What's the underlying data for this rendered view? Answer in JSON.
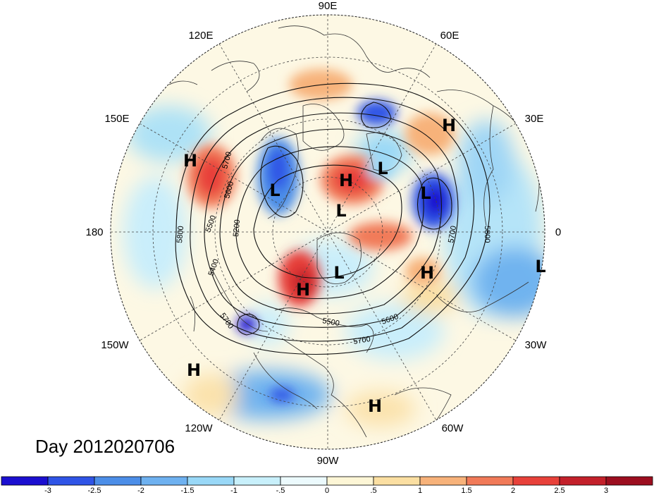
{
  "title": "Day 2012020706",
  "longitude_labels": [
    "90E",
    "60E",
    "30E",
    "0",
    "30W",
    "60W",
    "90W",
    "120W",
    "150W",
    "180",
    "150E",
    "120E"
  ],
  "pressure_centers": [
    {
      "type": "H",
      "label": "H"
    },
    {
      "type": "H",
      "label": "H"
    },
    {
      "type": "L",
      "label": "L"
    },
    {
      "type": "L",
      "label": "L"
    },
    {
      "type": "H",
      "label": "H"
    },
    {
      "type": "L",
      "label": "L"
    },
    {
      "type": "L",
      "label": "L"
    },
    {
      "type": "L",
      "label": "L"
    },
    {
      "type": "H",
      "label": "H"
    },
    {
      "type": "L",
      "label": "L"
    },
    {
      "type": "H",
      "label": "H"
    },
    {
      "type": "H",
      "label": "H"
    },
    {
      "type": "H",
      "label": "H"
    }
  ],
  "contour_labels": [
    "5700",
    "5600",
    "5500",
    "5400",
    "5200",
    "5800",
    "5700",
    "5500",
    "5600",
    "5700",
    "5700",
    "5800"
  ],
  "colorbar": {
    "tick_labels": [
      "-3",
      "-2.5",
      "-2",
      "-1.5",
      "-1",
      "-.5",
      "0",
      ".5",
      "1",
      "1.5",
      "2",
      "2.5",
      "3"
    ],
    "colors": [
      "#1b0fd0",
      "#2f54e6",
      "#4c8ee8",
      "#6eb1f0",
      "#99d8f7",
      "#c8f0fb",
      "#ecfafd",
      "#fdf6d6",
      "#fbdfa2",
      "#f7b27a",
      "#f17a58",
      "#e8413a",
      "#c3202a",
      "#9c0e1f"
    ]
  },
  "colors": {
    "positive": "#e8413a",
    "negative": "#2f54e6",
    "neutral": "#ecfafd"
  }
}
